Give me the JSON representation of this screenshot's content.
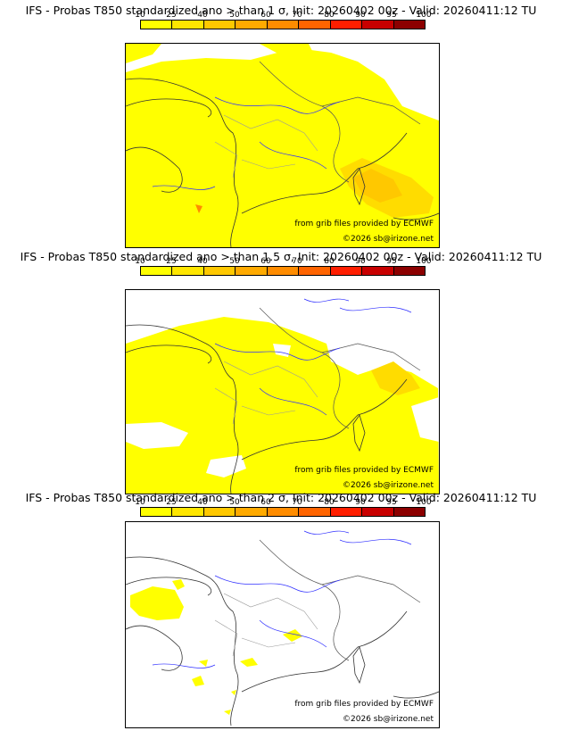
{
  "scale": {
    "ticks": [
      "10",
      "25",
      "40",
      "50",
      "60",
      "70",
      "80",
      "90",
      "95",
      "100"
    ],
    "colors": [
      "#ffff00",
      "#ffe600",
      "#ffc800",
      "#ffaa00",
      "#ff8c00",
      "#ff6400",
      "#ff1e00",
      "#c80000",
      "#8c0000",
      "#500000"
    ]
  },
  "panels": [
    {
      "title": "IFS - Probas T850  standardized ano > than 1 σ, Init: 20260402 00z - Valid: 20260411:12 TU",
      "credit_source": "from grib files provided by ECMWF",
      "credit_copyright": "©2026 sb@irizone.net"
    },
    {
      "title": "IFS - Probas T850  standardized ano > than 1.5 σ, Init: 20260402 00z - Valid: 20260411:12 TU",
      "credit_source": "from grib files provided by ECMWF",
      "credit_copyright": "©2026 sb@irizone.net"
    },
    {
      "title": "IFS - Probas T850  standardized ano > than 2 σ, Init: 20260402 00z - Valid: 20260411:12 TU",
      "credit_source": "from grib files provided by ECMWF",
      "credit_copyright": "©2026 sb@irizone.net"
    }
  ]
}
